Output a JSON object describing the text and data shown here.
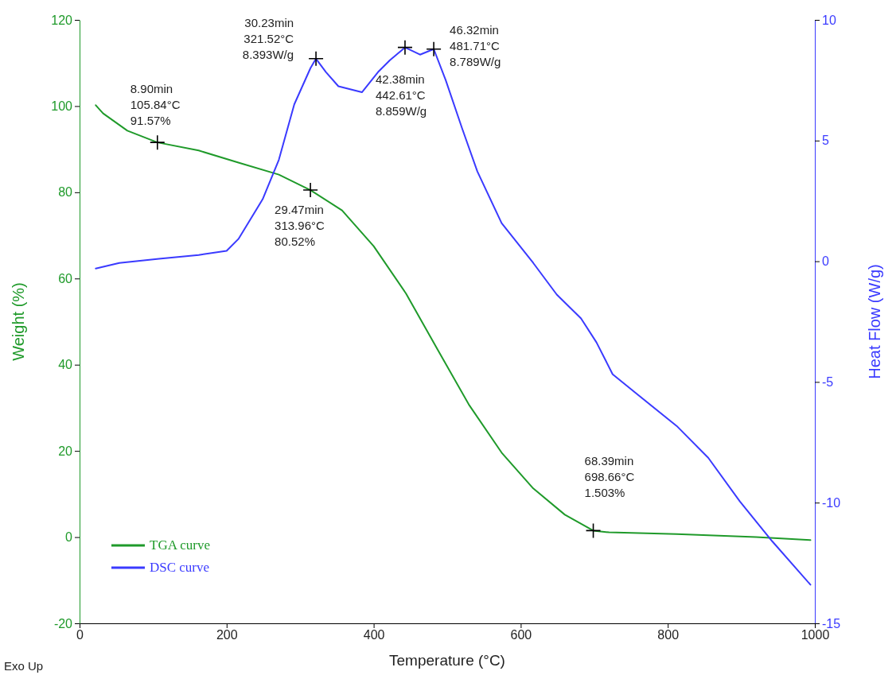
{
  "chart_data": {
    "type": "line",
    "xlabel": "Temperature (°C)",
    "ylabel": "Weight (%)",
    "y2label": "Heat Flow (W/g)",
    "xlim": [
      0,
      1000
    ],
    "xticks": [
      0,
      200,
      400,
      600,
      800,
      1000
    ],
    "ylim": [
      -20,
      120
    ],
    "yticks": [
      -20,
      0,
      20,
      40,
      60,
      80,
      100,
      120
    ],
    "y2lim": [
      -15,
      10
    ],
    "y2ticks": [
      -15,
      -10,
      -5,
      0,
      5,
      10
    ],
    "grid": false,
    "legend": "bottom left",
    "line_style": "solid",
    "series": [
      {
        "name": "TGA curve",
        "color": "#1f9a2a",
        "x": [
          22,
          32,
          65,
          105.84,
          162,
          216,
          271,
          313.96,
          357,
          400,
          444,
          487,
          530,
          574,
          617,
          660,
          698.66,
          720,
          812,
          920,
          994
        ],
        "values": [
          100.2,
          98.3,
          94.3,
          91.57,
          89.7,
          86.9,
          84.1,
          80.52,
          75.8,
          67.5,
          56.5,
          43.5,
          30.6,
          19.6,
          11.3,
          5.2,
          1.503,
          1.1,
          0.7,
          0,
          -0.7
        ]
      },
      {
        "name": "DSC curve",
        "color": "#3a3aff",
        "axis": "y2",
        "x": [
          22,
          54,
          108,
          162,
          200,
          216,
          249,
          271,
          292,
          314,
          321.52,
          335,
          352,
          384,
          406,
          422,
          442.61,
          463,
          481.71,
          498,
          520,
          541,
          574,
          617,
          649,
          682,
          703,
          725,
          758,
          812,
          855,
          898,
          942,
          994
        ],
        "values": [
          -0.3,
          -0.07,
          0.1,
          0.26,
          0.43,
          0.92,
          2.57,
          4.2,
          6.5,
          8.0,
          8.393,
          7.84,
          7.25,
          7.0,
          7.84,
          8.33,
          8.859,
          8.56,
          8.789,
          7.5,
          5.53,
          3.72,
          1.58,
          -0.07,
          -1.38,
          -2.37,
          -3.36,
          -4.68,
          -5.5,
          -6.82,
          -8.14,
          -9.95,
          -11.6,
          -13.4
        ]
      },
      {
        "type": "scatter",
        "marker": "cross",
        "color": "#000000",
        "x": [
          105.84,
          313.96,
          698.66
        ],
        "values": [
          91.57,
          80.52,
          1.503
        ]
      },
      {
        "type": "scatter",
        "marker": "cross",
        "color": "#000000",
        "axis": "y2",
        "x": [
          321.52,
          442.61,
          481.71
        ],
        "values": [
          8.393,
          8.859,
          8.789
        ]
      }
    ],
    "annotations": [
      "8.90min\n105.84°C\n91.57%",
      "29.47min\n313.96°C\n80.52%",
      "68.39min\n698.66°C\n1.503%",
      "30.23min\n321.52°C\n8.393W/g",
      "42.38min\n442.61°C\n8.859W/g",
      "46.32min\n481.71°C\n8.789W/g",
      "Exo Up"
    ]
  }
}
